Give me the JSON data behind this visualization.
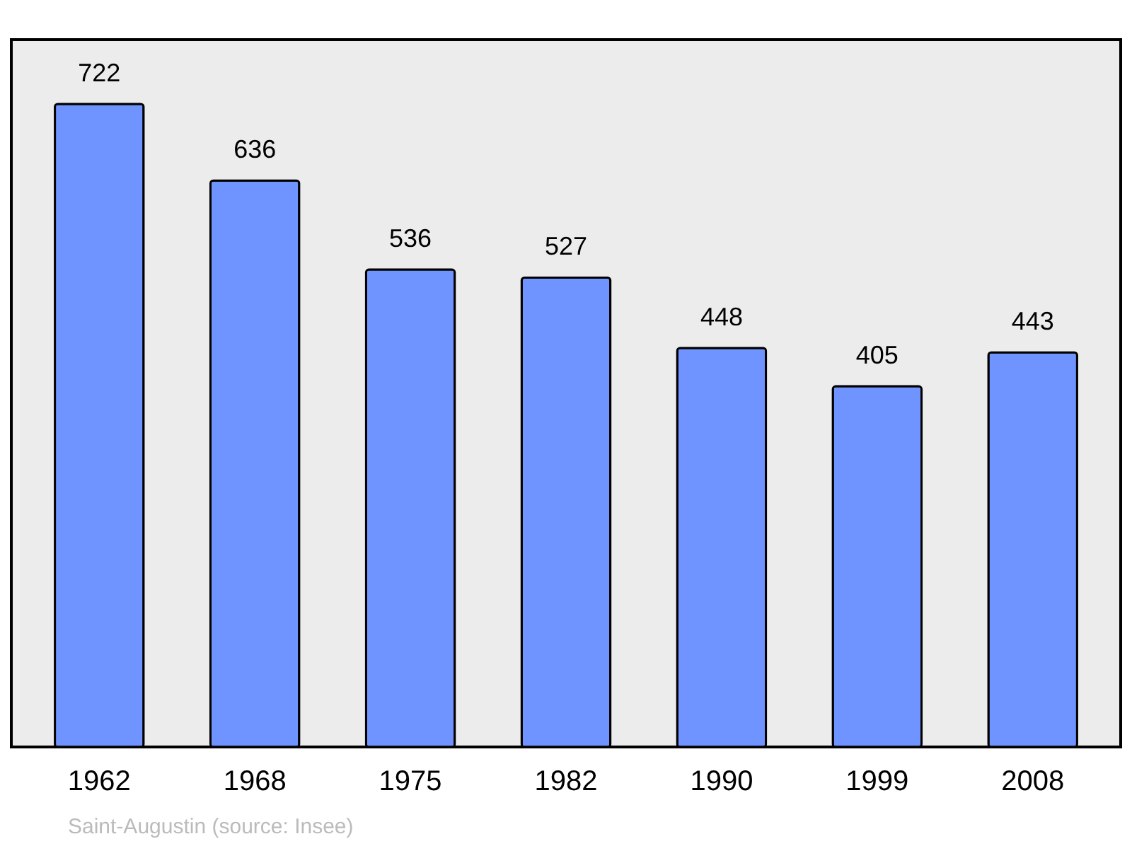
{
  "chart_data": {
    "type": "bar",
    "categories": [
      "1962",
      "1968",
      "1975",
      "1982",
      "1990",
      "1999",
      "2008"
    ],
    "values": [
      722,
      636,
      536,
      527,
      448,
      405,
      443
    ],
    "color": "#7094ff",
    "data_labels": true,
    "grid": false,
    "annotations": [
      "Saint-Augustin    (source: Insee)"
    ]
  }
}
